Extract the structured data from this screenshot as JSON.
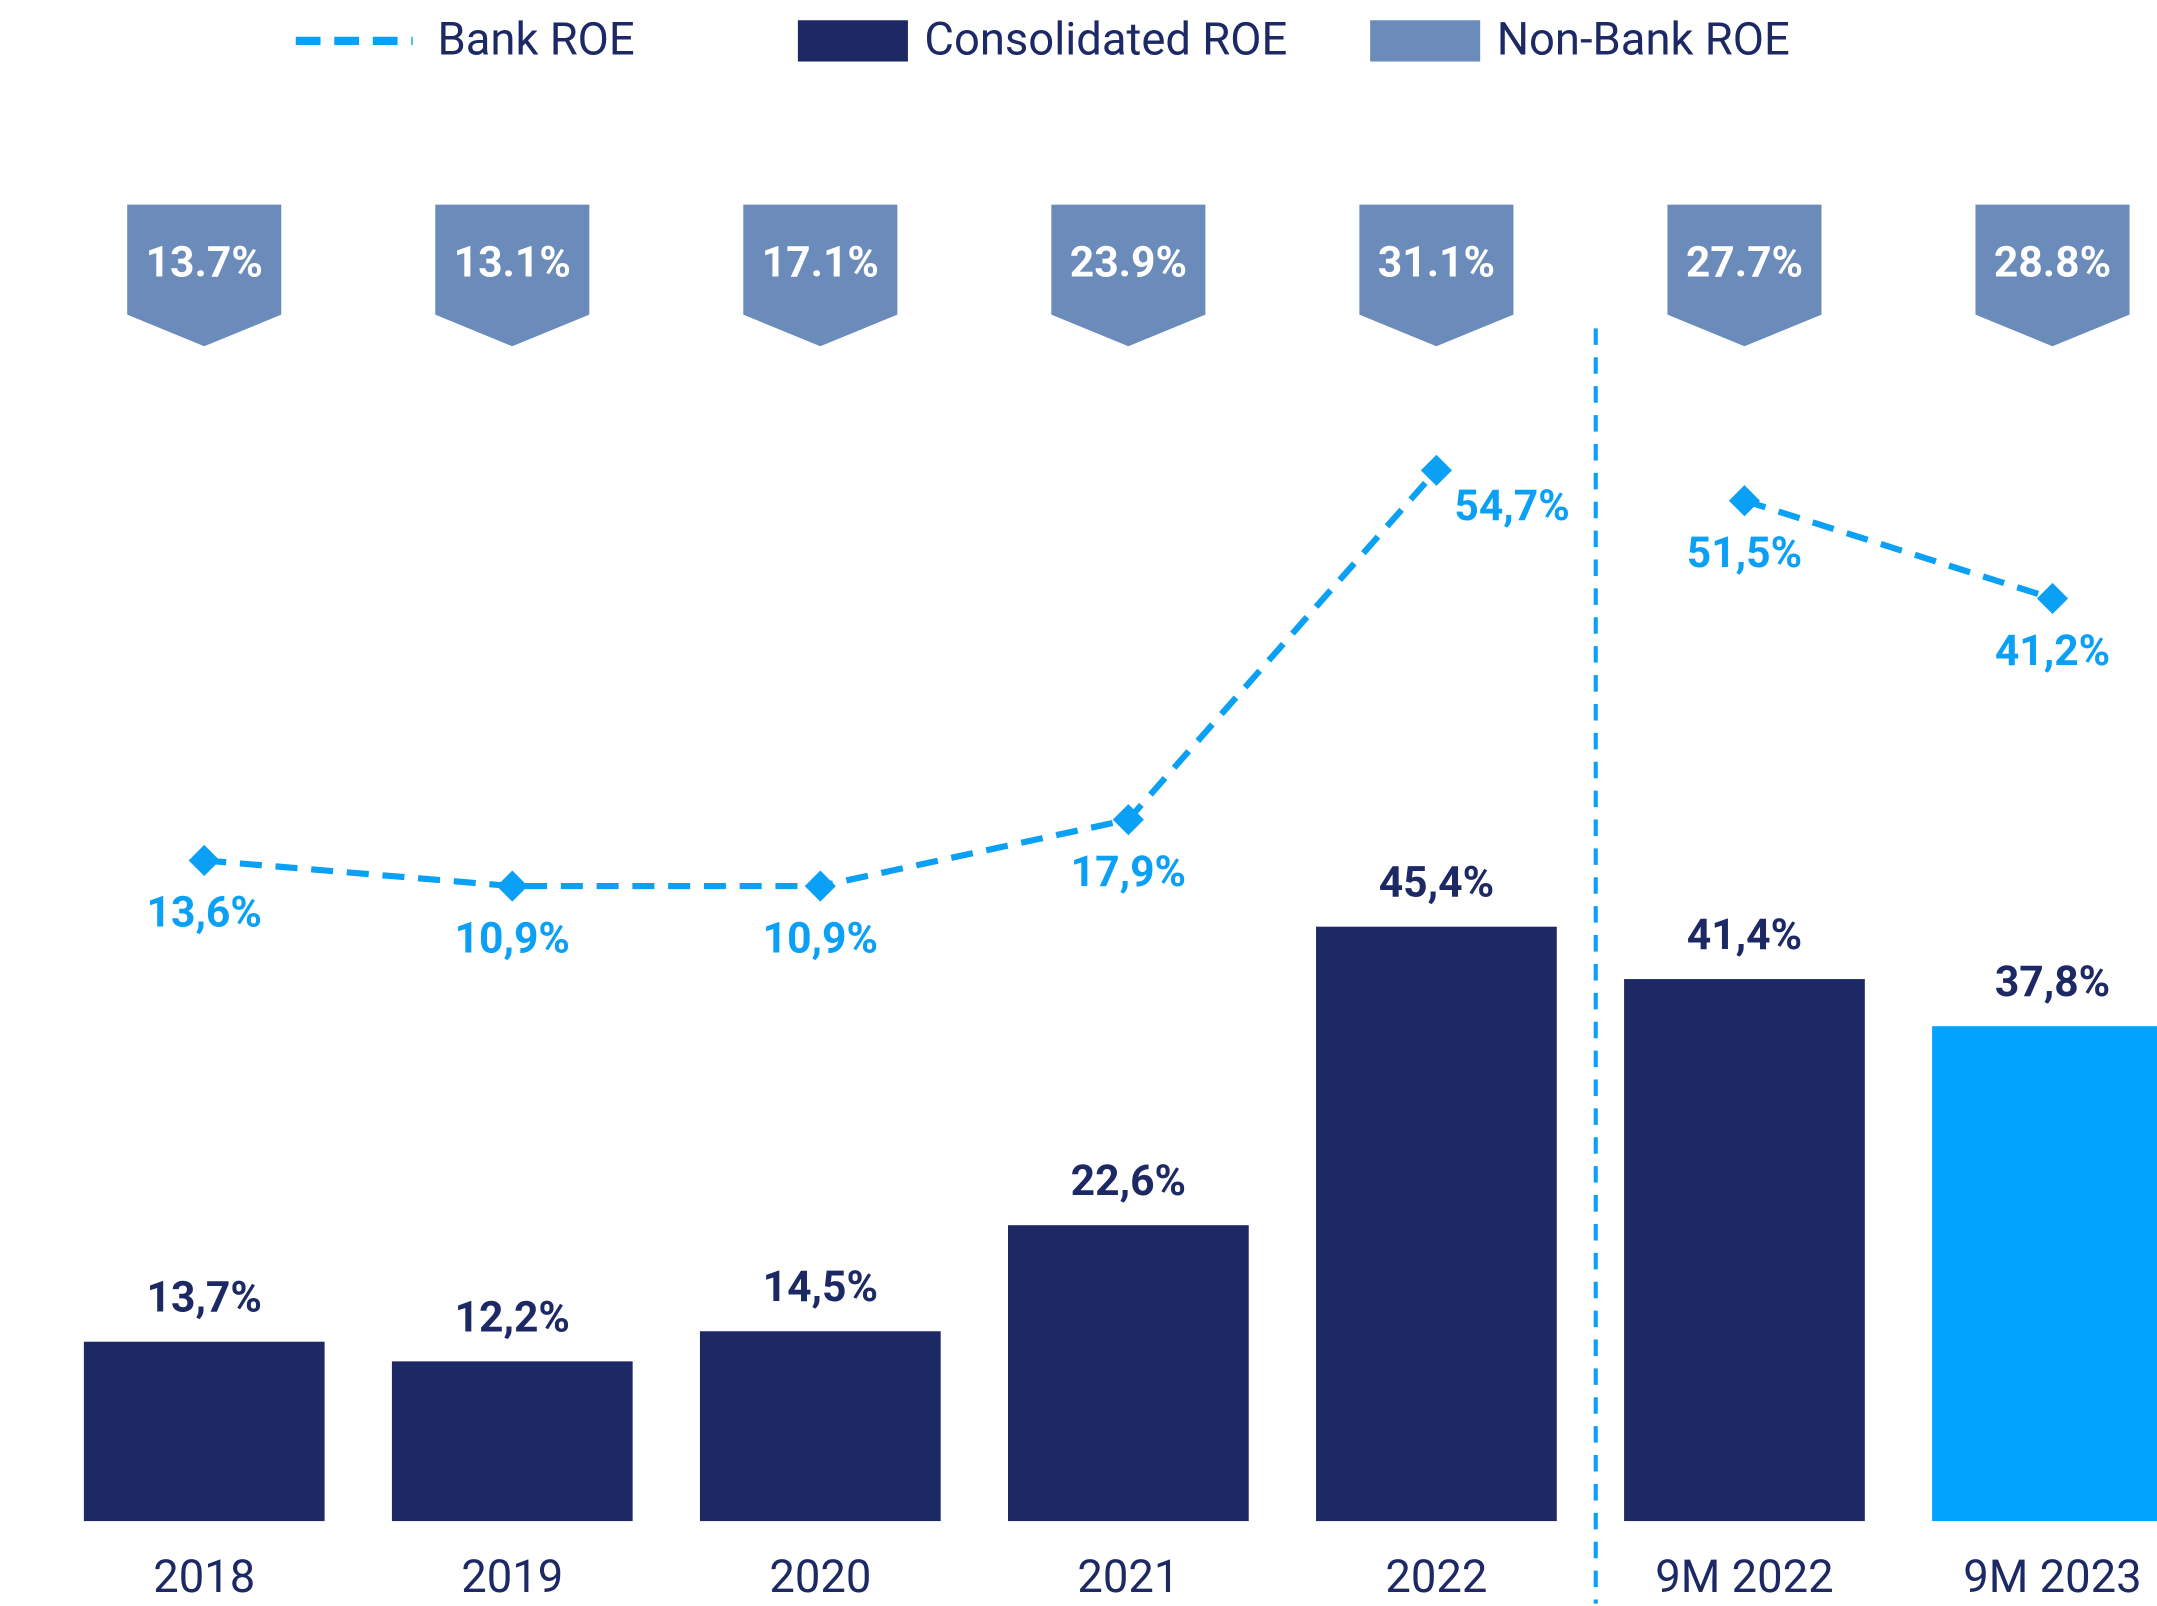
{
  "chart_data": {
    "type": "bar",
    "categories": [
      "2018",
      "2019",
      "2020",
      "2021",
      "2022",
      "9M 2022",
      "9M 2023"
    ],
    "series": [
      {
        "name": "Consolidated ROE",
        "type": "bar",
        "color": "#1d2964",
        "colors": [
          "#1d2964",
          "#1d2964",
          "#1d2964",
          "#1d2964",
          "#1d2964",
          "#1d2964",
          "#00a3ff"
        ],
        "values": [
          13.7,
          12.2,
          14.5,
          22.6,
          45.4,
          41.4,
          37.8
        ],
        "value_labels": [
          "13,7%",
          "12,2%",
          "14,5%",
          "22,6%",
          "45,4%",
          "41,4%",
          "37,8%"
        ]
      },
      {
        "name": "Bank ROE",
        "type": "line",
        "axis": "y2",
        "color": "#0aa0f5",
        "values": [
          13.6,
          10.9,
          10.9,
          17.9,
          54.7,
          51.5,
          41.2
        ],
        "value_labels": [
          "13,6%",
          "10,9%",
          "10,9%",
          "17,9%",
          "54,7%",
          "51,5%",
          "41,2%"
        ]
      },
      {
        "name": "Non-Bank ROE",
        "type": "badge",
        "color": "#6b8cba",
        "values": [
          13.7,
          13.1,
          17.1,
          23.9,
          31.1,
          27.7,
          28.8
        ],
        "value_labels": [
          "13.7%",
          "13.1%",
          "17.1%",
          "23.9%",
          "31.1%",
          "27.7%",
          "28.8%"
        ]
      }
    ],
    "ylim": [
      0,
      116
    ],
    "y2lim": [
      -56,
      104
    ],
    "divider_after": 4,
    "grid": false
  }
}
